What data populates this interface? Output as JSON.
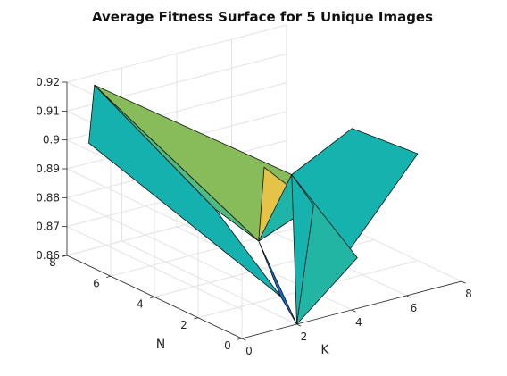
{
  "chart_data": {
    "type": "surface",
    "title": "Average Fitness Surface for 5 Unique Images",
    "xlabel": "K",
    "ylabel": "N",
    "zlabel": "",
    "xlim": [
      0,
      8
    ],
    "ylim": [
      0,
      8
    ],
    "zlim": [
      0.86,
      0.92
    ],
    "x_ticks": [
      "0",
      "2",
      "4",
      "6",
      "8"
    ],
    "y_ticks": [
      "0",
      "2",
      "4",
      "6",
      "8"
    ],
    "z_ticks": [
      "0.86",
      "0.87",
      "0.88",
      "0.89",
      "0.9",
      "0.91",
      "0.92"
    ],
    "grid": true,
    "colormap": "parula",
    "points": [
      {
        "K": 0,
        "N": 7,
        "fitness": 0.9025
      },
      {
        "K": 1,
        "N": 8,
        "fitness": 0.9165
      },
      {
        "K": 3,
        "N": 5,
        "fitness": 0.8795
      },
      {
        "K": 3,
        "N": 3,
        "fitness": 0.8755
      },
      {
        "K": 4,
        "N": 4,
        "fitness": 0.895
      },
      {
        "K": 5,
        "N": 3,
        "fitness": 0.883
      },
      {
        "K": 3,
        "N": 2,
        "fitness": 0.86
      },
      {
        "K": 5,
        "N": 1,
        "fitness": 0.872
      },
      {
        "K": 2,
        "N": 0,
        "fitness": 0.86
      },
      {
        "K": 8,
        "N": 2,
        "fitness": 0.897
      },
      {
        "K": 8,
        "N": 5,
        "fitness": 0.895
      },
      {
        "K": 5,
        "N": 4,
        "fitness": 0.89
      }
    ],
    "faces": [
      {
        "vertices": [
          0,
          1,
          2,
          6
        ],
        "fitness": 0.8845
      },
      {
        "vertices": [
          1,
          11,
          3
        ],
        "fitness": 0.8987
      },
      {
        "vertices": [
          1,
          3,
          2
        ],
        "fitness": 0.8948
      },
      {
        "vertices": [
          11,
          5,
          3
        ],
        "fitness": 0.887
      },
      {
        "vertices": [
          3,
          6,
          8
        ],
        "fitness": 0.87
      },
      {
        "vertices": [
          3,
          4,
          5
        ],
        "fitness": 0.91
      },
      {
        "vertices": [
          11,
          7,
          8,
          5
        ],
        "fitness": 0.888
      },
      {
        "vertices": [
          11,
          10,
          9,
          8
        ],
        "fitness": 0.885
      }
    ]
  }
}
